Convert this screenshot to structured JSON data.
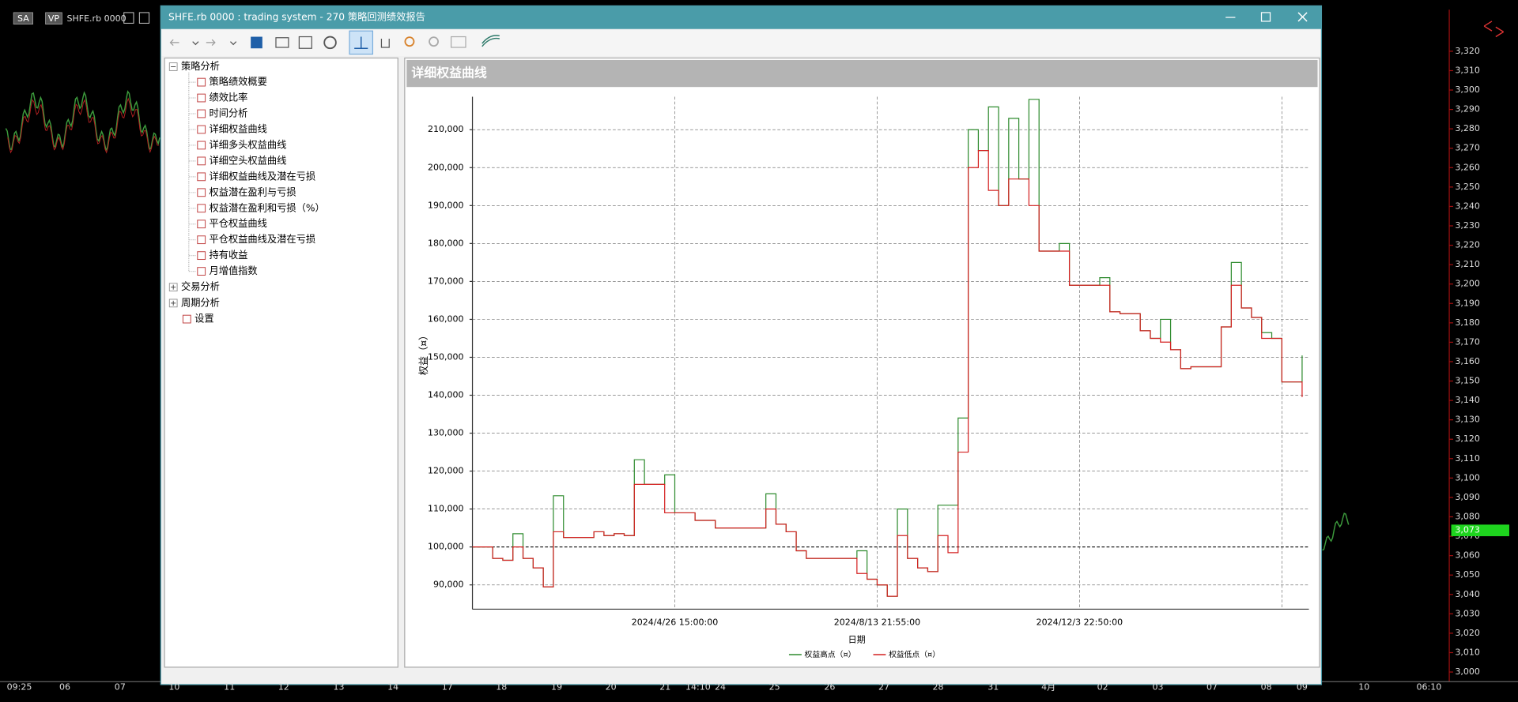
{
  "top_bar": {
    "tags": [
      "SA",
      "VP"
    ],
    "symbol": "SHFE.rb 0000"
  },
  "window": {
    "title": "SHFE.rb 0000 : trading system - 270 策略回测绩效报告",
    "tree": {
      "root": "策略分析",
      "children": [
        "策略绩效概要",
        "绩效比率",
        "时间分析",
        "详细权益曲线",
        "详细多头权益曲线",
        "详细空头权益曲线",
        "详细权益曲线及潜在亏损",
        "权益潜在盈利与亏损",
        "权益潜在盈利和亏损（%）",
        "平仓权益曲线",
        "平仓权益曲线及潜在亏损",
        "持有收益",
        "月增值指数"
      ],
      "others": [
        "交易分析",
        "周期分析",
        "设置"
      ]
    },
    "panel_title": "详细权益曲线"
  },
  "background": {
    "price_ticks": [
      {
        "value": 3320,
        "label": "3,320"
      },
      {
        "value": 3310,
        "label": "3,310"
      },
      {
        "value": 3300,
        "label": "3,300"
      },
      {
        "value": 3290,
        "label": "3,290"
      },
      {
        "value": 3280,
        "label": "3,280"
      },
      {
        "value": 3270,
        "label": "3,270"
      },
      {
        "value": 3260,
        "label": "3,260"
      },
      {
        "value": 3250,
        "label": "3,250"
      },
      {
        "value": 3240,
        "label": "3,240"
      },
      {
        "value": 3230,
        "label": "3,230"
      },
      {
        "value": 3220,
        "label": "3,220"
      },
      {
        "value": 3210,
        "label": "3,210"
      },
      {
        "value": 3200,
        "label": "3,200"
      },
      {
        "value": 3190,
        "label": "3,190"
      },
      {
        "value": 3180,
        "label": "3,180"
      },
      {
        "value": 3170,
        "label": "3,170"
      },
      {
        "value": 3160,
        "label": "3,160"
      },
      {
        "value": 3150,
        "label": "3,150"
      },
      {
        "value": 3140,
        "label": "3,140"
      },
      {
        "value": 3130,
        "label": "3,130"
      },
      {
        "value": 3120,
        "label": "3,120"
      },
      {
        "value": 3110,
        "label": "3,110"
      },
      {
        "value": 3100,
        "label": "3,100"
      },
      {
        "value": 3090,
        "label": "3,090"
      },
      {
        "value": 3080,
        "label": "3,080"
      },
      {
        "value": 3070,
        "label": "3,070"
      },
      {
        "value": 3060,
        "label": "3,060"
      },
      {
        "value": 3050,
        "label": "3,050"
      },
      {
        "value": 3040,
        "label": "3,040"
      },
      {
        "value": 3030,
        "label": "3,030"
      },
      {
        "value": 3020,
        "label": "3,020"
      },
      {
        "value": 3010,
        "label": "3,010"
      },
      {
        "value": 3000,
        "label": "3,000"
      }
    ],
    "price_lim": [
      3000,
      3320
    ],
    "current_price": {
      "value": 3073,
      "label": "3,073"
    },
    "time_labels": [
      "09:25",
      "06",
      "07",
      "10",
      "11",
      "12",
      "13",
      "14",
      "17",
      "18",
      "19",
      "20",
      "21",
      "14:10",
      "24",
      "25",
      "26",
      "27",
      "28",
      "31",
      "4月",
      "02",
      "03",
      "07",
      "08",
      "09",
      "10",
      "06:10"
    ]
  },
  "chart_data": {
    "type": "line",
    "xlabel": "日期",
    "ylabel": "权益（¤）",
    "categories": [
      null,
      null,
      null,
      null,
      null,
      null,
      null,
      null,
      null,
      null,
      null,
      null,
      null,
      null,
      null,
      null,
      null,
      null,
      null,
      null,
      "2024/4/26 15:00:00",
      null,
      null,
      null,
      null,
      null,
      null,
      null,
      null,
      null,
      null,
      null,
      null,
      null,
      null,
      null,
      null,
      null,
      null,
      null,
      "2024/8/13 21:55:00",
      null,
      null,
      null,
      null,
      null,
      null,
      null,
      null,
      null,
      null,
      null,
      null,
      null,
      null,
      null,
      null,
      null,
      null,
      null,
      "2024/12/3 22:50:00",
      null,
      null,
      null,
      null,
      null,
      null,
      null,
      null,
      null,
      null,
      null,
      null,
      null,
      null,
      null,
      null,
      null,
      null,
      null,
      null,
      null,
      null
    ],
    "ylim": [
      83600,
      218700
    ],
    "yticks": [
      {
        "value": 90000,
        "label": "90,000"
      },
      {
        "value": 100000,
        "label": "100,000"
      },
      {
        "value": 110000,
        "label": "110,000"
      },
      {
        "value": 120000,
        "label": "120,000"
      },
      {
        "value": 130000,
        "label": "130,000"
      },
      {
        "value": 140000,
        "label": "140,000"
      },
      {
        "value": 150000,
        "label": "150,000"
      },
      {
        "value": 160000,
        "label": "160,000"
      },
      {
        "value": 170000,
        "label": "170,000"
      },
      {
        "value": 180000,
        "label": "180,000"
      },
      {
        "value": 190000,
        "label": "190,000"
      },
      {
        "value": 200000,
        "label": "200,000"
      },
      {
        "value": 210000,
        "label": "210,000"
      }
    ],
    "grid": true,
    "reference_line": 100000,
    "series": [
      {
        "name": "权益高点（¤）",
        "color": "#2e8b2e",
        "values": [
          100000,
          100000,
          97000,
          96500,
          103500,
          97000,
          94500,
          89500,
          113500,
          102500,
          102500,
          102500,
          104000,
          103000,
          103500,
          103000,
          123000,
          116500,
          116500,
          119000,
          109000,
          109000,
          107000,
          107000,
          105000,
          105000,
          105000,
          105000,
          105000,
          114000,
          106000,
          104000,
          99000,
          97000,
          97000,
          97000,
          97000,
          97000,
          99000,
          91500,
          90000,
          87000,
          110000,
          97000,
          94500,
          93500,
          111000,
          111000,
          134000,
          210000,
          204500,
          216000,
          190000,
          213000,
          197000,
          218000,
          178000,
          178000,
          180000,
          169000,
          169000,
          169000,
          171000,
          162000,
          161500,
          161500,
          157000,
          155000,
          160000,
          152000,
          147000,
          147500,
          147500,
          147500,
          158000,
          175000,
          163000,
          160500,
          156500,
          155000,
          143500,
          143500,
          150500
        ]
      },
      {
        "name": "权益低点（¤）",
        "color": "#d42020",
        "values": [
          100000,
          100000,
          97000,
          96500,
          100000,
          97000,
          94500,
          89500,
          104000,
          102500,
          102500,
          102500,
          104000,
          103000,
          103500,
          103000,
          116500,
          116500,
          116500,
          109000,
          109000,
          109000,
          107000,
          107000,
          105000,
          105000,
          105000,
          105000,
          105000,
          110000,
          106000,
          104000,
          99000,
          97000,
          97000,
          97000,
          97000,
          97000,
          93000,
          91500,
          90000,
          87000,
          103000,
          97000,
          94500,
          93500,
          103000,
          98500,
          125000,
          200000,
          204500,
          194000,
          190000,
          197000,
          197000,
          190000,
          178000,
          178000,
          178000,
          169000,
          169000,
          169000,
          169000,
          162000,
          161500,
          161500,
          157000,
          155000,
          154000,
          152000,
          147000,
          147500,
          147500,
          147500,
          158000,
          169000,
          163000,
          160500,
          155000,
          155000,
          143500,
          143500,
          139500
        ]
      }
    ]
  }
}
